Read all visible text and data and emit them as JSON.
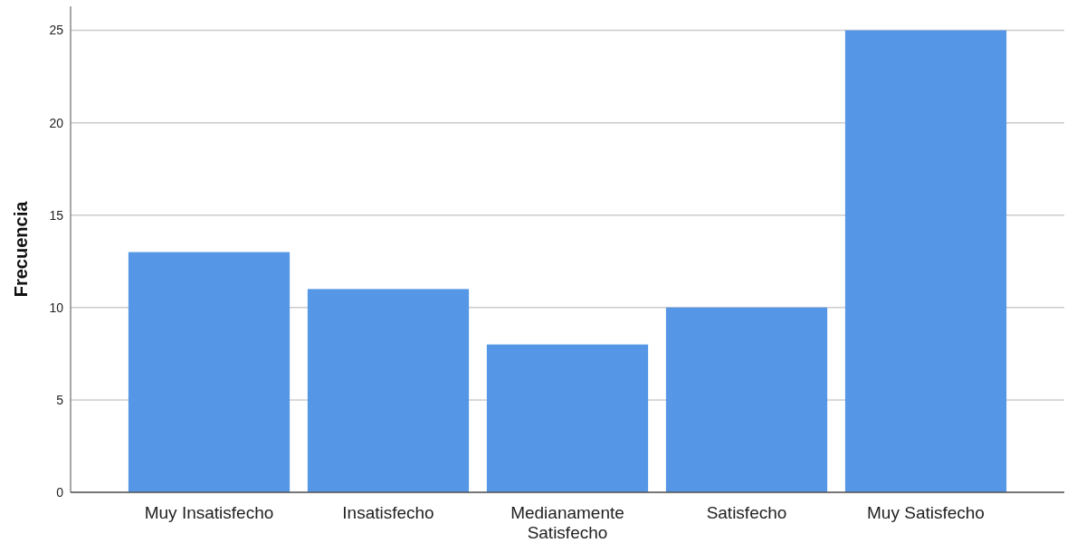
{
  "chart_data": {
    "type": "bar",
    "ylabel": "Frecuencia",
    "categories": [
      "Muy Insatisfecho",
      "Insatisfecho",
      "Medianamente Satisfecho",
      "Satisfecho",
      "Muy Satisfecho"
    ],
    "values": [
      13,
      11,
      8,
      10,
      25
    ],
    "color": "#5596e6",
    "ylim": [
      0,
      26.3
    ],
    "yticks": [
      0,
      5,
      10,
      15,
      20,
      25
    ],
    "grid": "y"
  }
}
